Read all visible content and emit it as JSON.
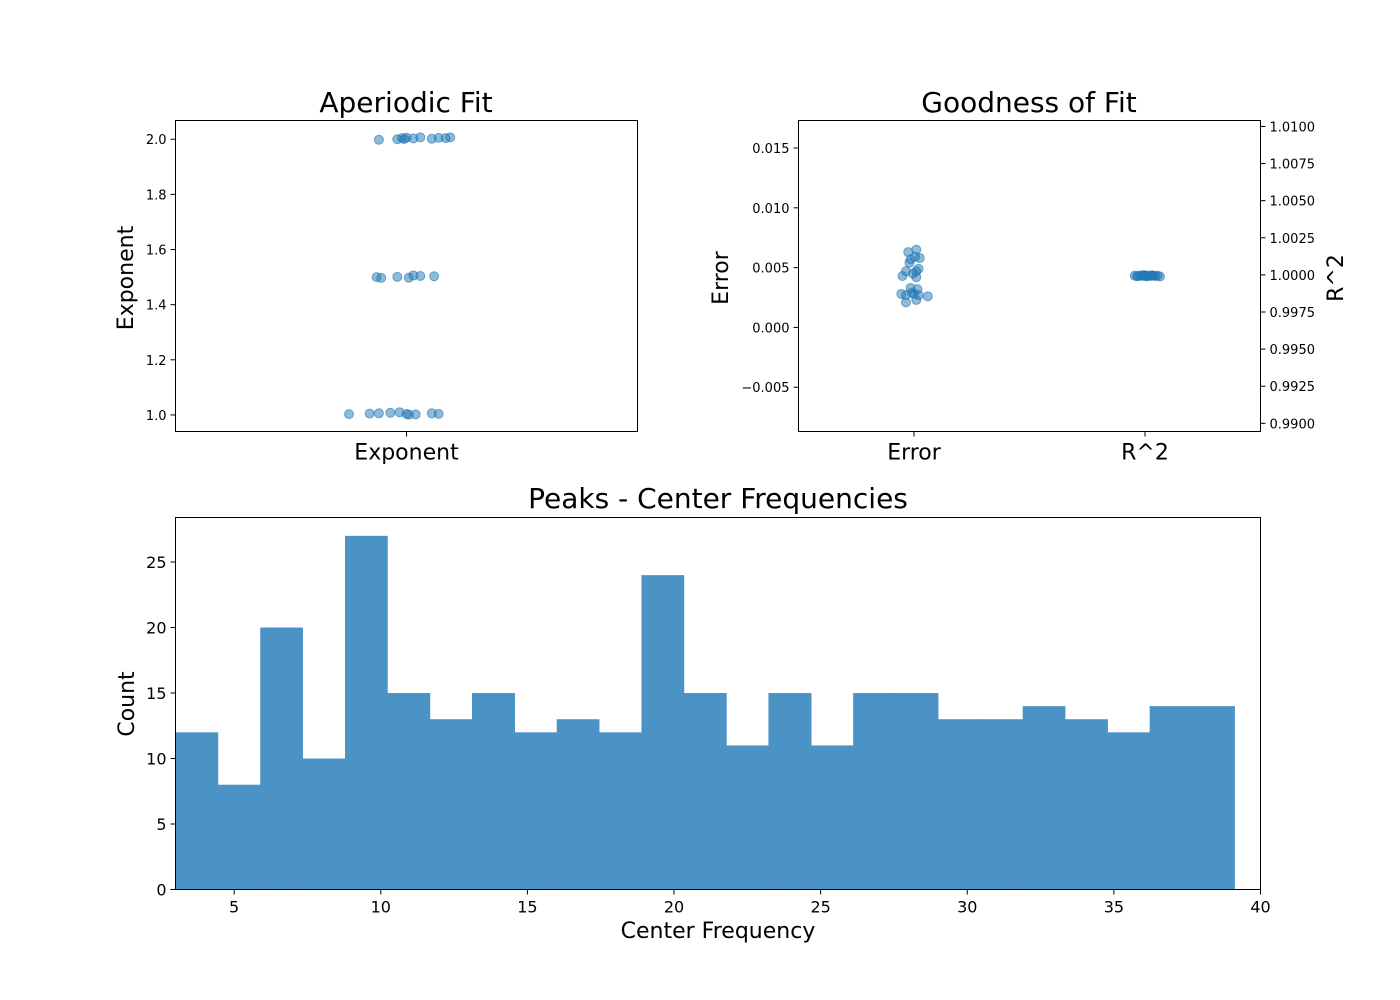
{
  "chart_data": [
    {
      "type": "scatter",
      "title": "Aperiodic Fit",
      "xlabel": "",
      "ylabel": "Exponent",
      "categories": [
        "Exponent"
      ],
      "ylim": [
        0.94,
        2.068
      ],
      "yticks": [
        1.0,
        1.2,
        1.4,
        1.6,
        1.8,
        2.0
      ],
      "ytick_labels": [
        "1.0",
        "1.2",
        "1.4",
        "1.6",
        "1.8",
        "2.0"
      ],
      "grid": false,
      "color": "#1f77b4",
      "series": [
        {
          "category": "Exponent",
          "points": [
            {
              "x": -0.12,
              "y": 1.998
            },
            {
              "x": -0.04,
              "y": 2.0
            },
            {
              "x": -0.02,
              "y": 2.004
            },
            {
              "x": -0.01,
              "y": 2.001
            },
            {
              "x": 0.0,
              "y": 2.006
            },
            {
              "x": 0.03,
              "y": 2.003
            },
            {
              "x": 0.06,
              "y": 2.007
            },
            {
              "x": 0.11,
              "y": 2.002
            },
            {
              "x": 0.14,
              "y": 2.005
            },
            {
              "x": 0.17,
              "y": 2.004
            },
            {
              "x": 0.19,
              "y": 2.007
            },
            {
              "x": -0.13,
              "y": 1.5
            },
            {
              "x": -0.11,
              "y": 1.497
            },
            {
              "x": -0.04,
              "y": 1.501
            },
            {
              "x": 0.01,
              "y": 1.498
            },
            {
              "x": 0.03,
              "y": 1.506
            },
            {
              "x": 0.06,
              "y": 1.504
            },
            {
              "x": 0.12,
              "y": 1.503
            },
            {
              "x": -0.25,
              "y": 1.003
            },
            {
              "x": -0.16,
              "y": 1.005
            },
            {
              "x": -0.12,
              "y": 1.006
            },
            {
              "x": -0.07,
              "y": 1.008
            },
            {
              "x": -0.03,
              "y": 1.01
            },
            {
              "x": 0.0,
              "y": 1.004
            },
            {
              "x": 0.01,
              "y": 1.001
            },
            {
              "x": 0.04,
              "y": 1.002
            },
            {
              "x": 0.11,
              "y": 1.006
            },
            {
              "x": 0.14,
              "y": 1.004
            }
          ]
        }
      ]
    },
    {
      "type": "scatter",
      "title": "Goodness of Fit",
      "xlabel": "",
      "ylabel": "Error",
      "y2label": "R^2",
      "categories": [
        "Error",
        "R^2"
      ],
      "ylim": [
        -0.0087,
        0.0173
      ],
      "yticks": [
        -0.005,
        0.0,
        0.005,
        0.01,
        0.015
      ],
      "ytick_labels": [
        "−0.005",
        "0.000",
        "0.005",
        "0.010",
        "0.015"
      ],
      "y2lim": [
        0.98945,
        1.0104
      ],
      "y2ticks": [
        0.99,
        0.9925,
        0.995,
        0.9975,
        1.0,
        1.0025,
        1.005,
        1.0075,
        1.01
      ],
      "y2tick_labels": [
        "0.9900",
        "0.9925",
        "0.9950",
        "0.9975",
        "1.0000",
        "1.0025",
        "1.0050",
        "1.0075",
        "1.0100"
      ],
      "grid": false,
      "color": "#1f77b4",
      "series": [
        {
          "category": "Error",
          "axis": "left",
          "points": [
            {
              "x": -0.05,
              "y": 0.0063
            },
            {
              "x": 0.02,
              "y": 0.0065
            },
            {
              "x": -0.03,
              "y": 0.0057
            },
            {
              "x": 0.01,
              "y": 0.0059
            },
            {
              "x": 0.05,
              "y": 0.0058
            },
            {
              "x": -0.04,
              "y": 0.0054
            },
            {
              "x": 0.04,
              "y": 0.0049
            },
            {
              "x": -0.07,
              "y": 0.0047
            },
            {
              "x": 0.02,
              "y": 0.0047
            },
            {
              "x": -0.01,
              "y": 0.0045
            },
            {
              "x": -0.1,
              "y": 0.0043
            },
            {
              "x": 0.02,
              "y": 0.0042
            },
            {
              "x": -0.03,
              "y": 0.0033
            },
            {
              "x": 0.03,
              "y": 0.0032
            },
            {
              "x": -0.02,
              "y": 0.0029
            },
            {
              "x": 0.0,
              "y": 0.0028
            },
            {
              "x": -0.11,
              "y": 0.0028
            },
            {
              "x": -0.07,
              "y": 0.0027
            },
            {
              "x": 0.12,
              "y": 0.0026
            },
            {
              "x": 0.04,
              "y": 0.0027
            },
            {
              "x": 0.02,
              "y": 0.0023
            },
            {
              "x": -0.07,
              "y": 0.0021
            }
          ]
        },
        {
          "category": "R^2",
          "axis": "right",
          "points": [
            {
              "x": -0.09,
              "y": 0.99995
            },
            {
              "x": -0.06,
              "y": 0.99992
            },
            {
              "x": -0.04,
              "y": 0.99996
            },
            {
              "x": -0.02,
              "y": 0.99993
            },
            {
              "x": 0.0,
              "y": 0.99997
            },
            {
              "x": 0.01,
              "y": 0.99992
            },
            {
              "x": 0.03,
              "y": 0.99995
            },
            {
              "x": 0.05,
              "y": 0.99993
            },
            {
              "x": 0.07,
              "y": 0.99996
            },
            {
              "x": 0.09,
              "y": 0.99992
            },
            {
              "x": 0.11,
              "y": 0.99995
            },
            {
              "x": -0.07,
              "y": 0.99991
            },
            {
              "x": 0.06,
              "y": 0.99997
            },
            {
              "x": 0.02,
              "y": 0.99991
            },
            {
              "x": 0.13,
              "y": 0.99989
            },
            {
              "x": -0.01,
              "y": 0.99998
            }
          ]
        }
      ]
    },
    {
      "type": "bar",
      "subtype": "histogram",
      "title": "Peaks - Center Frequencies",
      "xlabel": "Center Frequency",
      "ylabel": "Count",
      "xlim": [
        3.0,
        40.0
      ],
      "ylim": [
        0,
        28.4
      ],
      "xticks": [
        5,
        10,
        15,
        20,
        25,
        30,
        35,
        40
      ],
      "yticks": [
        0,
        5,
        10,
        15,
        20,
        25
      ],
      "bin_edges": [
        3.0,
        4.44,
        5.89,
        7.33,
        8.78,
        10.22,
        11.67,
        13.11,
        14.56,
        16.0,
        17.44,
        18.89,
        20.33,
        21.78,
        23.22,
        24.67,
        26.11,
        27.56,
        29.0,
        30.44,
        31.89,
        33.33,
        34.78,
        36.22,
        37.67,
        39.11
      ],
      "values": [
        12,
        8,
        20,
        10,
        27,
        15,
        13,
        15,
        12,
        13,
        12,
        24,
        15,
        11,
        15,
        11,
        15,
        15,
        13,
        13,
        14,
        13,
        12,
        14,
        14
      ],
      "color": "#4c93c5",
      "grid": false
    }
  ]
}
